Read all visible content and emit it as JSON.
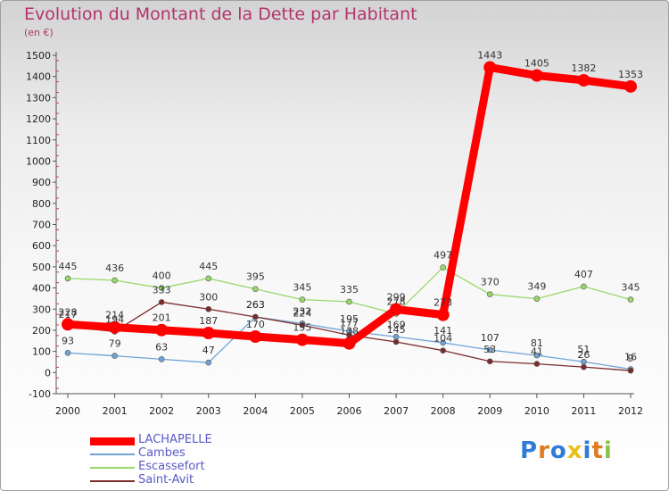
{
  "title": "Evolution du Montant de la Dette par Habitant",
  "subtitle": "(en €)",
  "logo": {
    "text": "Proxiti",
    "colors": [
      "#2f7bd6",
      "#e07b20",
      "#2f7bd6",
      "#e8c117",
      "#2f7bd6",
      "#e07b20",
      "#8bc34a"
    ]
  },
  "chart_data": {
    "type": "line",
    "title": "Evolution du Montant de la Dette par Habitant",
    "subtitle": "(en €)",
    "x": [
      "2000",
      "2001",
      "2002",
      "2003",
      "2004",
      "2005",
      "2006",
      "2007",
      "2008",
      "2009",
      "2010",
      "2011",
      "2012"
    ],
    "ylim": [
      -100,
      1500
    ],
    "yticks": [
      -100,
      0,
      100,
      200,
      300,
      400,
      500,
      600,
      700,
      800,
      900,
      1000,
      1100,
      1200,
      1300,
      1400,
      1500
    ],
    "grid": false,
    "legend_position": "bottom-left",
    "series": [
      {
        "name": "LACHAPELLE",
        "color": "#ff0000",
        "values": [
          228,
          214,
          201,
          187,
          170,
          155,
          138,
          299,
          273,
          1443,
          1405,
          1382,
          1353
        ]
      },
      {
        "name": "Cambes",
        "color": "#6ea3d4",
        "values": [
          93,
          79,
          63,
          47,
          263,
          232,
          195,
          169,
          141,
          107,
          81,
          51,
          16
        ]
      },
      {
        "name": "Escassefort",
        "color": "#98d86a",
        "values": [
          445,
          436,
          400,
          445,
          395,
          345,
          335,
          278,
          497,
          370,
          349,
          407,
          345
        ]
      },
      {
        "name": "Saint-Avit",
        "color": "#7b2c2c",
        "values": [
          217,
          194,
          333,
          300,
          263,
          224,
          177,
          145,
          104,
          53,
          41,
          26,
          9
        ]
      }
    ]
  }
}
